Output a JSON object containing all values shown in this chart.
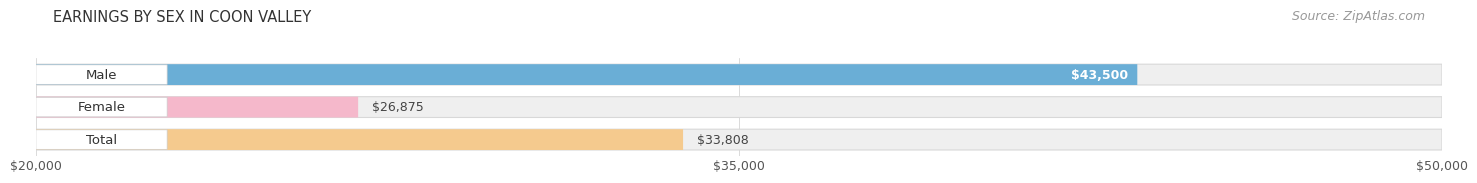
{
  "title": "EARNINGS BY SEX IN COON VALLEY",
  "source": "Source: ZipAtlas.com",
  "categories": [
    "Male",
    "Female",
    "Total"
  ],
  "values": [
    43500,
    26875,
    33808
  ],
  "value_labels": [
    "$43,500",
    "$26,875",
    "$33,808"
  ],
  "value_inside": [
    true,
    false,
    false
  ],
  "bar_colors": [
    "#6aaed6",
    "#f5b8cb",
    "#f5ca8e"
  ],
  "x_min": 20000,
  "x_max": 50000,
  "x_ticks": [
    20000,
    35000,
    50000
  ],
  "x_tick_labels": [
    "$20,000",
    "$35,000",
    "$50,000"
  ],
  "background_color": "#ffffff",
  "track_color": "#efefef",
  "track_edge_color": "#d8d8d8",
  "title_fontsize": 10.5,
  "source_fontsize": 9,
  "tick_fontsize": 9,
  "label_fontsize": 9.5,
  "value_fontsize": 9
}
